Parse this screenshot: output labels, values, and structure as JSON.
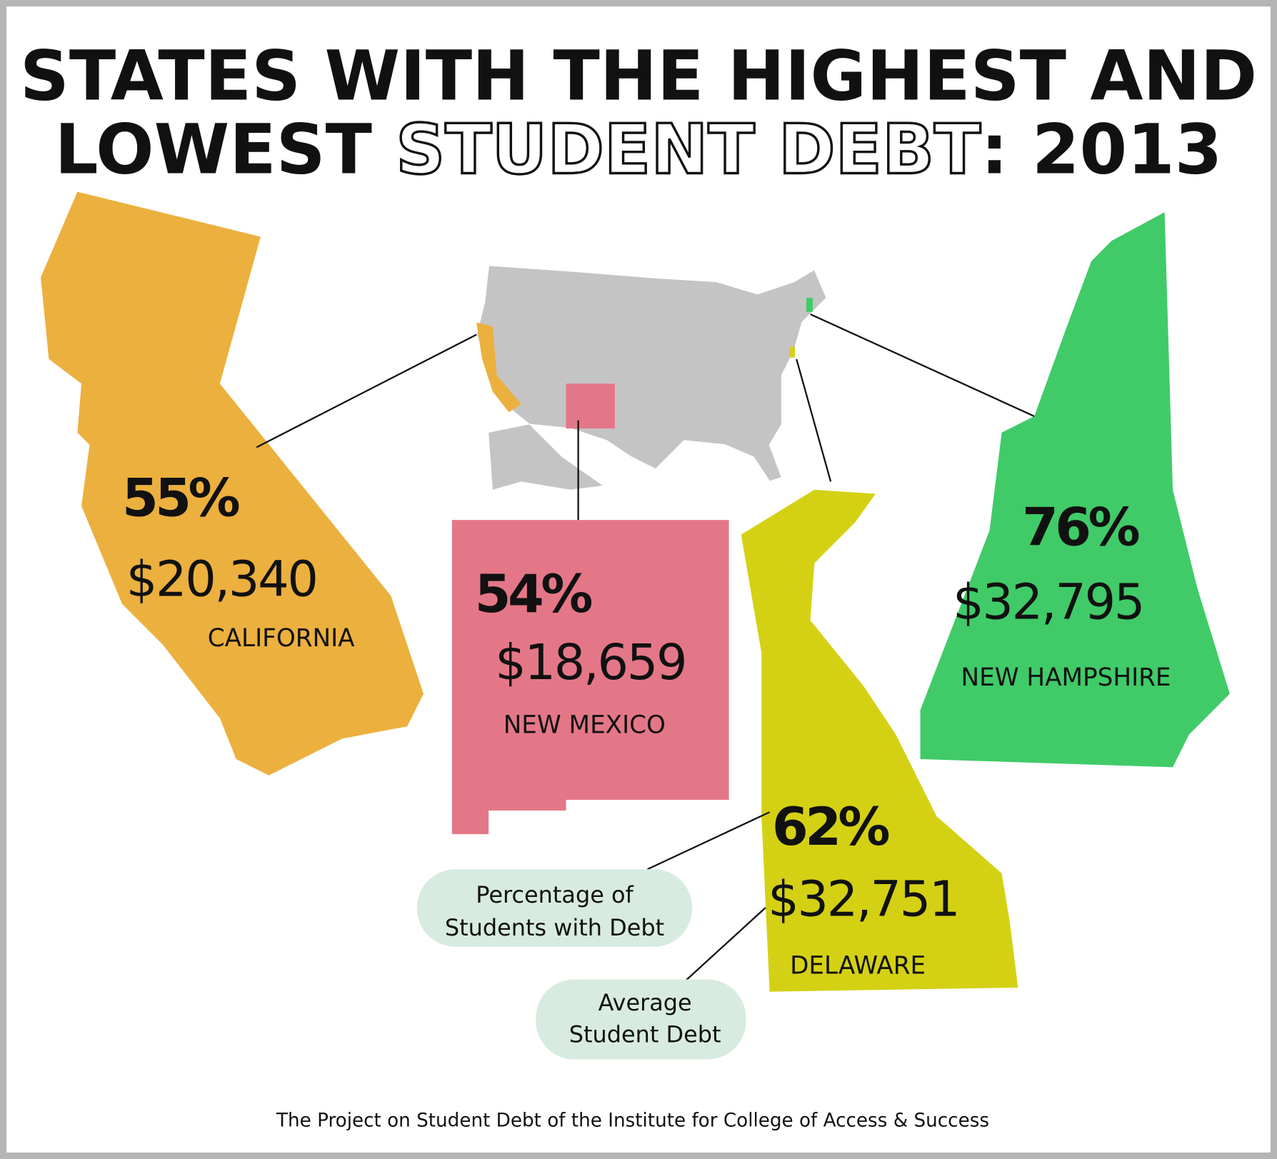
{
  "header": {
    "title_line1": "STATES WITH THE HIGHEST AND",
    "title_part1": "LOWEST ",
    "title_part2": "STUDENT DEBT",
    "title_part3": ": 2013"
  },
  "states": [
    {
      "name": "CALIFORNIA",
      "percent": "55%",
      "debt": "$20,340"
    },
    {
      "name": "NEW MEXICO",
      "percent": "54%",
      "debt": "$18,659"
    },
    {
      "name": "DELAWARE",
      "percent": "62%",
      "debt": "$32,751"
    },
    {
      "name": "NEW HAMPSHIRE",
      "percent": "76%",
      "debt": "$32,795"
    }
  ],
  "legend": [
    {
      "line1": "Percentage of",
      "line2": "Students with Debt"
    },
    {
      "line1": "Average",
      "line2": "Student Debt"
    }
  ],
  "footer": {
    "source": "The Project on Student Debt of the Institute for College of Access & Success"
  }
}
